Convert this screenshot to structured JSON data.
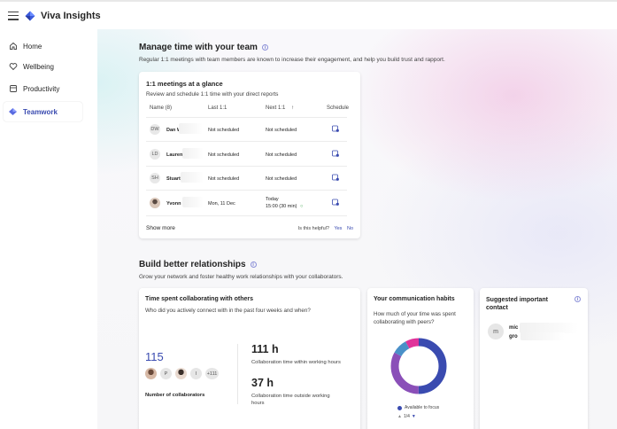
{
  "app": {
    "title": "Viva Insights"
  },
  "sidebar": {
    "items": [
      {
        "label": "Home",
        "icon": "home-icon"
      },
      {
        "label": "Wellbeing",
        "icon": "heart-icon"
      },
      {
        "label": "Productivity",
        "icon": "productivity-icon"
      },
      {
        "label": "Teamwork",
        "icon": "teamwork-icon",
        "active": true
      }
    ]
  },
  "manage": {
    "title": "Manage time with your team",
    "subtitle": "Regular 1:1 meetings with team members are known to increase their engagement, and help you build trust and rapport.",
    "card": {
      "title": "1:1 meetings at a glance",
      "subtitle": "Review and schedule 1:1 time with your direct reports",
      "columns": {
        "name": "Name (8)",
        "last": "Last 1:1",
        "next": "Next 1:1",
        "schedule": "Schedule"
      },
      "rows": [
        {
          "initials": "DW",
          "name": "Dan W",
          "last": "Not scheduled",
          "next": "Not scheduled",
          "next2": ""
        },
        {
          "initials": "LD",
          "name": "Lauren",
          "last": "Not scheduled",
          "next": "Not scheduled",
          "next2": ""
        },
        {
          "initials": "SH",
          "name": "Stuart",
          "last": "Not scheduled",
          "next": "Not scheduled",
          "next2": ""
        },
        {
          "initials": "",
          "name": "Yvonn",
          "last": "Mon, 11 Dec",
          "next": "Today",
          "next2": "15:00 (30 min)"
        }
      ],
      "show_more": "Show more",
      "helpful": {
        "question": "Is this helpful?",
        "yes": "Yes",
        "no": "No"
      }
    }
  },
  "relationships": {
    "title": "Build better relationships",
    "subtitle": "Grow your network and foster healthy work relationships with your collaborators.",
    "collab": {
      "title": "Time spent collaborating with others",
      "subtitle": "Who did you actively connect with in the past four weeks and when?",
      "collaborators_count": "115",
      "avatars": [
        "",
        "P",
        "",
        "I",
        "+111"
      ],
      "collaborators_label": "Number of collaborators",
      "within_hours": "111 h",
      "within_label": "Collaboration time within working hours",
      "outside_hours": "37 h",
      "outside_label": "Collaboration time outside working hours"
    },
    "habits": {
      "title": "Your communication habits",
      "subtitle": "How much of your time was spent collaborating with peers?",
      "legend": "Available to focus",
      "pager": "1/4",
      "donut": [
        {
          "value": 0.5,
          "color": "#3a4bb0"
        },
        {
          "value": 0.33,
          "color": "#8a4fb8"
        },
        {
          "value": 0.09,
          "color": "#4a90c8"
        },
        {
          "value": 0.08,
          "color": "#e0339a"
        }
      ]
    },
    "suggested": {
      "title": "Suggested important contact",
      "initial": "m",
      "line1": "mic",
      "line2": "gro"
    }
  }
}
